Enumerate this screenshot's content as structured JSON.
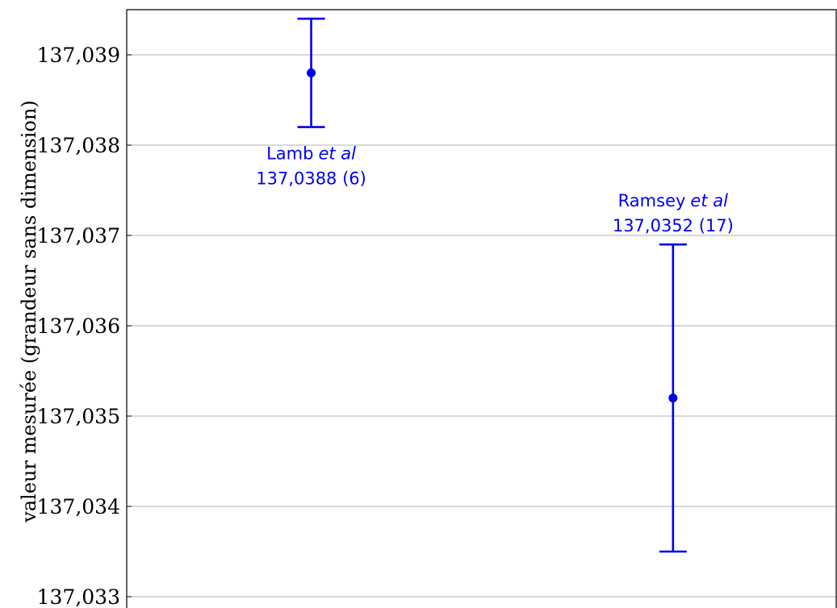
{
  "chart_data": {
    "type": "scatter",
    "title": "",
    "xlabel": "",
    "ylabel": "valeur mesurée (grandeur sans dimension)",
    "ylim": [
      137.033,
      137.0395
    ],
    "xlim": [
      0,
      10
    ],
    "yticks": [
      {
        "value": 137.033,
        "label": "137,033"
      },
      {
        "value": 137.034,
        "label": "137,034"
      },
      {
        "value": 137.035,
        "label": "137,035"
      },
      {
        "value": 137.036,
        "label": "137,036"
      },
      {
        "value": 137.037,
        "label": "137,037"
      },
      {
        "value": 137.038,
        "label": "137,038"
      },
      {
        "value": 137.039,
        "label": "137,039"
      }
    ],
    "grid": "horizontal",
    "color": "#0000ee",
    "points": [
      {
        "name": "Lamb",
        "name_suffix": "et al",
        "value_label": "137,0388 (6)",
        "x": 2.6,
        "y": 137.0388,
        "err_low": 137.0382,
        "err_high": 137.0394,
        "label_position": "below"
      },
      {
        "name": "Ramsey",
        "name_suffix": "et al",
        "value_label": "137,0352 (17)",
        "x": 7.7,
        "y": 137.0352,
        "err_low": 137.0335,
        "err_high": 137.0369,
        "label_position": "above"
      }
    ]
  }
}
